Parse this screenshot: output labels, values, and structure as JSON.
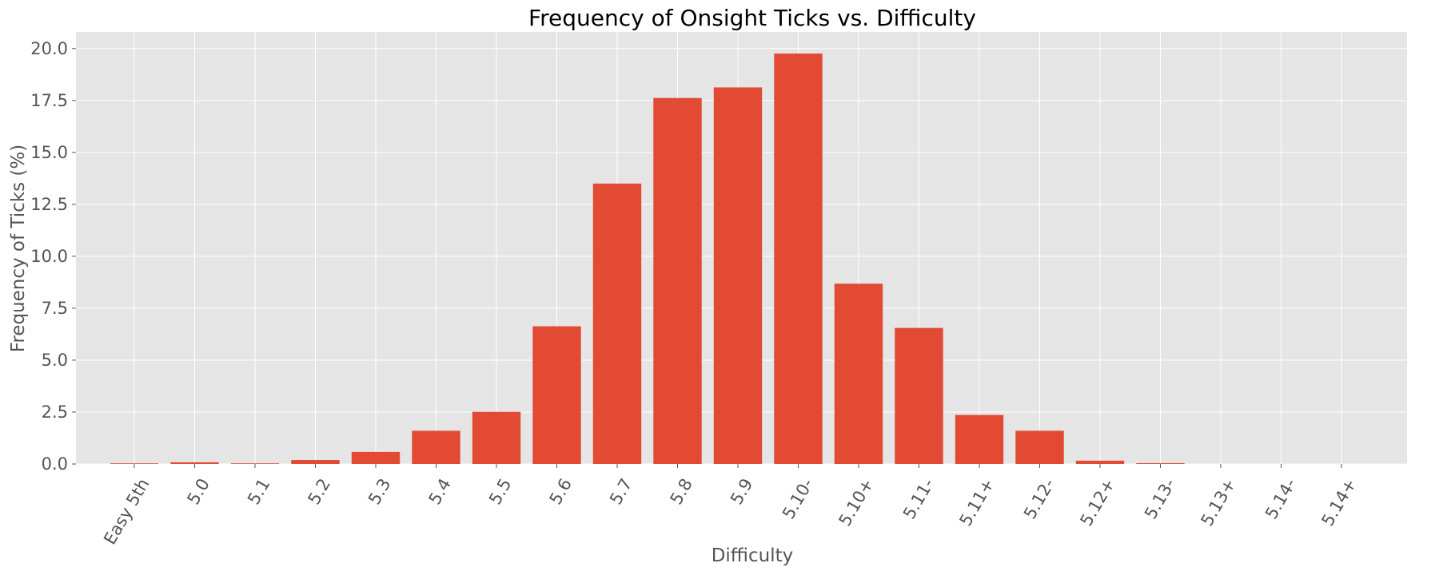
{
  "chart_data": {
    "type": "bar",
    "title": "Frequency of Onsight Ticks vs. Difficulty",
    "xlabel": "Difficulty",
    "ylabel": "Frequency of Ticks (%)",
    "categories": [
      "Easy 5th",
      "5.0",
      "5.1",
      "5.2",
      "5.3",
      "5.4",
      "5.5",
      "5.6",
      "5.7",
      "5.8",
      "5.9",
      "5.10-",
      "5.10+",
      "5.11-",
      "5.11+",
      "5.12-",
      "5.12+",
      "5.13-",
      "5.13+",
      "5.14-",
      "5.14+"
    ],
    "values": [
      0.03,
      0.08,
      0.03,
      0.19,
      0.58,
      1.6,
      2.51,
      6.63,
      13.5,
      17.62,
      18.13,
      19.76,
      8.68,
      6.55,
      2.36,
      1.6,
      0.16,
      0.04,
      0.0,
      0.0,
      0.0
    ],
    "ylim": [
      0,
      20.8
    ],
    "yticks": [
      "0.0",
      "2.5",
      "5.0",
      "7.5",
      "10.0",
      "12.5",
      "15.0",
      "17.5",
      "20.0"
    ],
    "ytick_values": [
      0,
      2.5,
      5.0,
      7.5,
      10.0,
      12.5,
      15.0,
      17.5,
      20.0
    ],
    "grid": true,
    "colors": {
      "bar": "#E24A33",
      "background": "#E5E5E5",
      "grid": "#FFFFFF",
      "text": "#555555"
    }
  }
}
